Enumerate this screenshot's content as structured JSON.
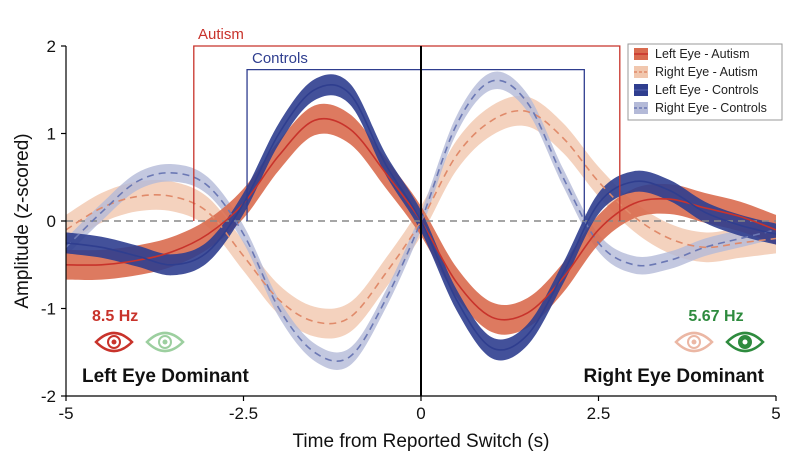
{
  "chart_data": {
    "type": "line",
    "title": "",
    "xlabel": "Time from Reported Switch (s)",
    "ylabel": "Amplitude (z-scored)",
    "xlim": [
      -5,
      5
    ],
    "ylim": [
      -2,
      2
    ],
    "x_ticks": [
      -5,
      -2.5,
      0,
      2.5,
      5
    ],
    "x_tick_labels": [
      "-5",
      "-2.5",
      "0",
      "2.5",
      "5"
    ],
    "y_ticks": [
      -2,
      -1,
      0,
      1,
      2
    ],
    "y_tick_labels": [
      "-2",
      "-1",
      "0",
      "1",
      "2"
    ],
    "reference_lines": {
      "horizontal_dashed_at": 0,
      "vertical_solid_at": 0
    },
    "colors": {
      "autism": "#c8332b",
      "controls": "#2f3e8f",
      "hz_left": "#c8332b",
      "hz_right": "#2e8b3e"
    },
    "series": [
      {
        "name": "Left Eye - Autism",
        "style": "solid",
        "color": "#c8332b",
        "band_color": "#d96b4f",
        "band_opacity": 0.9,
        "x": [
          -5,
          -4.5,
          -4,
          -3.5,
          -3,
          -2.5,
          -2,
          -1.5,
          -1,
          -0.5,
          0,
          0.5,
          1,
          1.5,
          2,
          2.5,
          3,
          3.5,
          4,
          4.5,
          5
        ],
        "values": [
          -0.5,
          -0.5,
          -0.45,
          -0.35,
          -0.15,
          0.2,
          0.75,
          1.15,
          1.05,
          0.55,
          0,
          -0.7,
          -1.1,
          -1.05,
          -0.65,
          -0.1,
          0.2,
          0.25,
          0.15,
          0.05,
          -0.1
        ],
        "band_halfwidth": 0.17
      },
      {
        "name": "Right Eye - Autism",
        "style": "dashed",
        "color": "#e08a6a",
        "band_color": "#f1c7ae",
        "band_opacity": 0.8,
        "x": [
          -5,
          -4.5,
          -4,
          -3.5,
          -3,
          -2.5,
          -2,
          -1.5,
          -1,
          -0.5,
          0,
          0.5,
          1,
          1.5,
          2,
          2.5,
          3,
          3.5,
          4,
          4.5,
          5
        ],
        "values": [
          -0.1,
          0.15,
          0.28,
          0.28,
          0.1,
          -0.4,
          -0.9,
          -1.15,
          -1.1,
          -0.6,
          0,
          0.75,
          1.15,
          1.25,
          0.95,
          0.45,
          0.05,
          -0.2,
          -0.3,
          -0.25,
          -0.2
        ],
        "band_halfwidth": 0.17
      },
      {
        "name": "Left Eye - Controls",
        "style": "solid",
        "color": "#2f3e8f",
        "band_color": "#2f3e8f",
        "band_opacity": 0.9,
        "x": [
          -5,
          -4.5,
          -4,
          -3.5,
          -3,
          -2.5,
          -2,
          -1.5,
          -1,
          -0.5,
          0,
          0.5,
          1,
          1.5,
          2,
          2.5,
          3,
          3.5,
          4,
          4.5,
          5
        ],
        "values": [
          -0.25,
          -0.3,
          -0.4,
          -0.5,
          -0.35,
          0.2,
          1.0,
          1.5,
          1.45,
          0.65,
          0,
          -0.9,
          -1.45,
          -1.3,
          -0.6,
          0.2,
          0.45,
          0.35,
          0.1,
          -0.05,
          -0.15
        ],
        "band_halfwidth": 0.12
      },
      {
        "name": "Right Eye - Controls",
        "style": "dashed",
        "color": "#6b78b4",
        "band_color": "#b4bad8",
        "band_opacity": 0.8,
        "x": [
          -5,
          -4.5,
          -4,
          -3.5,
          -3,
          -2.5,
          -2,
          -1.5,
          -1,
          -0.5,
          0,
          0.5,
          1,
          1.5,
          2,
          2.5,
          3,
          3.5,
          4,
          4.5,
          5
        ],
        "values": [
          -0.3,
          0.1,
          0.45,
          0.55,
          0.4,
          -0.15,
          -1.0,
          -1.5,
          -1.55,
          -0.9,
          0,
          1.1,
          1.6,
          1.35,
          0.5,
          -0.25,
          -0.5,
          -0.45,
          -0.3,
          -0.2,
          -0.1
        ],
        "band_halfwidth": 0.1
      }
    ],
    "windows": [
      {
        "label": "Autism",
        "color": "#c8332b",
        "x0": -3.2,
        "x1": 2.8,
        "y_top": 2.0
      },
      {
        "label": "Controls",
        "color": "#2f3e8f",
        "x0": -2.45,
        "x1": 2.3,
        "y_top": 1.73
      }
    ],
    "legend": {
      "placement": "top-right"
    },
    "annotations": {
      "left_hz": "8.5 Hz",
      "right_hz": "5.67 Hz",
      "left_dominant": "Left Eye Dominant",
      "right_dominant": "Right Eye Dominant"
    }
  }
}
